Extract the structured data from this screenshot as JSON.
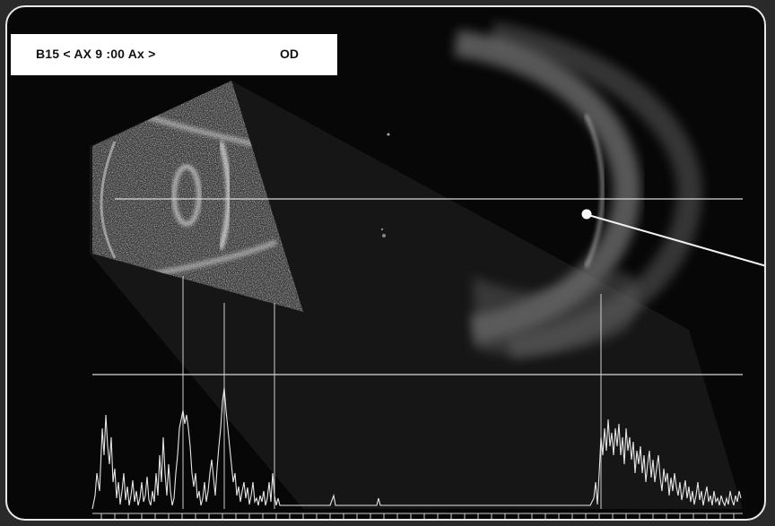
{
  "header": {
    "scan_label": "B15 < AX 9 :00 Ax >",
    "eye": "OD"
  },
  "icons": {
    "pointer": "annotation-pointer-icon"
  },
  "colors": {
    "background": "#070707",
    "frame_border": "#e8e8e8",
    "header_bg": "#ffffff",
    "trace": "#e6e6e6"
  }
}
